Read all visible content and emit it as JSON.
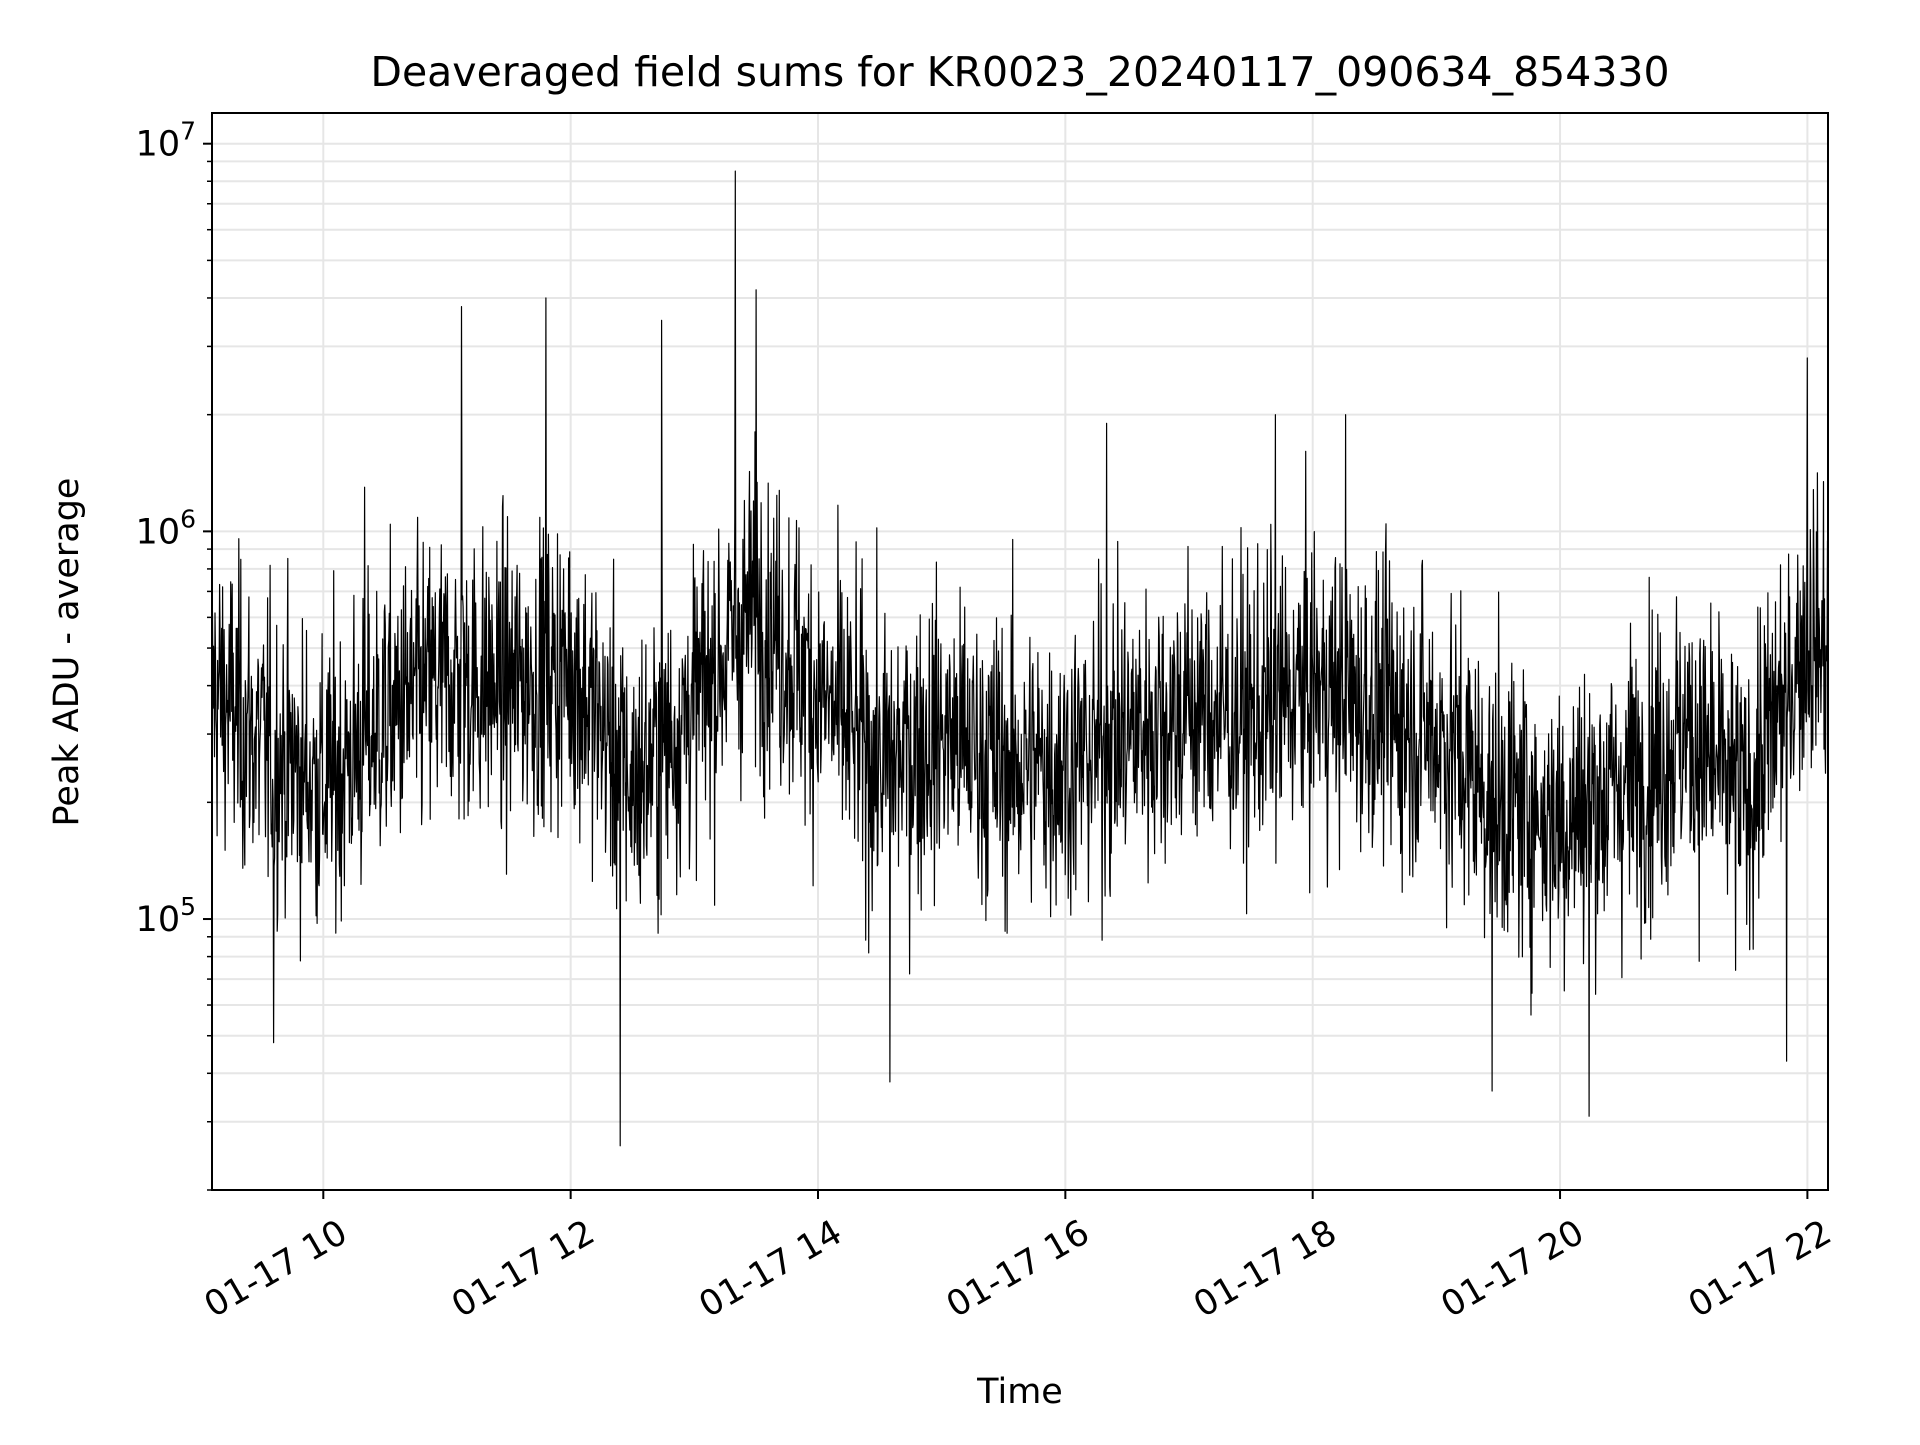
{
  "chart_data": {
    "type": "line",
    "title": "Deaveraged field sums for KR0023_20240117_090634_854330",
    "xlabel": "Time",
    "ylabel": "Peak ADU - average",
    "yscale": "log",
    "ylim": [
      20000,
      12000000
    ],
    "xlim": [
      "2024-01-17 09:06",
      "2024-01-17 22:10"
    ],
    "grid": true,
    "line_color": "#000000",
    "x_ticks": [
      {
        "value": "2024-01-17 10:00",
        "label": "01-17 10"
      },
      {
        "value": "2024-01-17 12:00",
        "label": "01-17 12"
      },
      {
        "value": "2024-01-17 14:00",
        "label": "01-17 14"
      },
      {
        "value": "2024-01-17 16:00",
        "label": "01-17 16"
      },
      {
        "value": "2024-01-17 18:00",
        "label": "01-17 18"
      },
      {
        "value": "2024-01-17 20:00",
        "label": "01-17 20"
      },
      {
        "value": "2024-01-17 22:00",
        "label": "01-17 22"
      }
    ],
    "y_ticks": [
      {
        "value": 100000,
        "base": "10",
        "exp": "5"
      },
      {
        "value": 1000000,
        "base": "10",
        "exp": "6"
      },
      {
        "value": 10000000,
        "base": "10",
        "exp": "7"
      }
    ],
    "series": [
      {
        "x": [
          "2024-01-17 09:06",
          "2024-01-17 09:30",
          "2024-01-17 10:00",
          "2024-01-17 10:30",
          "2024-01-17 11:00",
          "2024-01-17 11:30",
          "2024-01-17 12:00",
          "2024-01-17 12:30",
          "2024-01-17 13:00",
          "2024-01-17 13:30",
          "2024-01-17 14:00",
          "2024-01-17 14:30",
          "2024-01-17 15:00",
          "2024-01-17 15:30",
          "2024-01-17 16:00",
          "2024-01-17 16:30",
          "2024-01-17 17:00",
          "2024-01-17 17:30",
          "2024-01-17 18:00",
          "2024-01-17 18:30",
          "2024-01-17 19:00",
          "2024-01-17 19:30",
          "2024-01-17 20:00",
          "2024-01-17 20:30",
          "2024-01-17 21:00",
          "2024-01-17 21:30",
          "2024-01-17 22:00",
          "2024-01-17 22:10"
        ],
        "y": [
          400000,
          280000,
          220000,
          330000,
          420000,
          400000,
          450000,
          220000,
          360000,
          650000,
          380000,
          250000,
          300000,
          250000,
          250000,
          300000,
          350000,
          330000,
          400000,
          350000,
          300000,
          200000,
          180000,
          220000,
          300000,
          200000,
          550000,
          500000
        ],
        "peaks": [
          {
            "x": "2024-01-17 10:20",
            "y": 1300000
          },
          {
            "x": "2024-01-17 11:07",
            "y": 3800000
          },
          {
            "x": "2024-01-17 11:48",
            "y": 4000000
          },
          {
            "x": "2024-01-17 12:44",
            "y": 3500000
          },
          {
            "x": "2024-01-17 13:20",
            "y": 8500000
          },
          {
            "x": "2024-01-17 13:30",
            "y": 4200000
          },
          {
            "x": "2024-01-17 16:20",
            "y": 1900000
          },
          {
            "x": "2024-01-17 17:42",
            "y": 2000000
          },
          {
            "x": "2024-01-17 18:16",
            "y": 2000000
          },
          {
            "x": "2024-01-17 22:00",
            "y": 2800000
          }
        ],
        "troughs": [
          {
            "x": "2024-01-17 09:36",
            "y": 48000
          },
          {
            "x": "2024-01-17 12:24",
            "y": 26000
          },
          {
            "x": "2024-01-17 14:35",
            "y": 38000
          },
          {
            "x": "2024-01-17 19:27",
            "y": 36000
          },
          {
            "x": "2024-01-17 20:14",
            "y": 31000
          },
          {
            "x": "2024-01-17 21:50",
            "y": 43000
          }
        ]
      }
    ]
  }
}
